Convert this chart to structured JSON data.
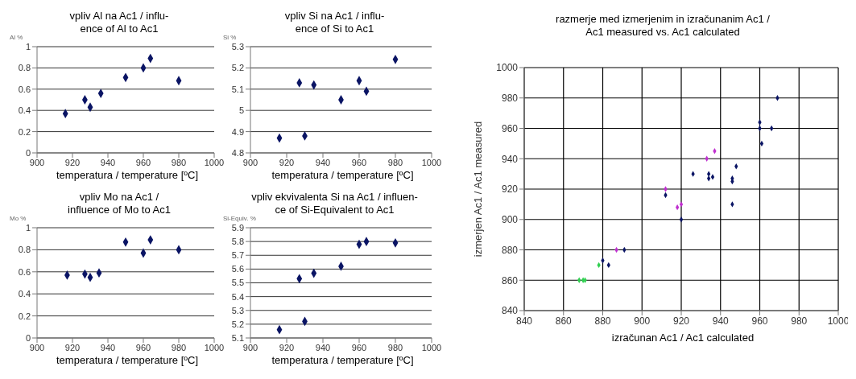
{
  "chart_data": [
    {
      "type": "scatter",
      "title": "vpliv Al na Ac1 / influ-\nence of Al to Ac1",
      "xlabel": "temperatura / temperature [ºC]",
      "ylabel": "Al %",
      "x": [
        916,
        927,
        930,
        936,
        950,
        960,
        964,
        980
      ],
      "values": [
        0.37,
        0.5,
        0.43,
        0.56,
        0.71,
        0.8,
        0.89,
        0.68
      ],
      "color": "#0a1464",
      "xlim": [
        900,
        1000
      ],
      "ylim": [
        0,
        1
      ],
      "xticks": [
        900,
        920,
        940,
        960,
        980,
        1000
      ],
      "yticks": [
        0,
        0.2,
        0.4,
        0.6,
        0.8,
        1
      ],
      "grid": "y",
      "marker": "diamond"
    },
    {
      "type": "scatter",
      "title": "vpliv Si na Ac1 / influ-\nence of Si to Ac1",
      "xlabel": "temperatura / temperature [ºC]",
      "ylabel": "Si %",
      "x": [
        916,
        927,
        930,
        935,
        950,
        960,
        964,
        980
      ],
      "values": [
        4.87,
        5.13,
        4.88,
        5.12,
        5.05,
        5.14,
        5.09,
        5.24
      ],
      "color": "#0a1464",
      "xlim": [
        900,
        1000
      ],
      "ylim": [
        4.8,
        5.3
      ],
      "xticks": [
        900,
        920,
        940,
        960,
        980,
        1000
      ],
      "yticks": [
        4.8,
        4.9,
        5,
        5.1,
        5.2,
        5.3
      ],
      "grid": "y",
      "marker": "diamond"
    },
    {
      "type": "scatter",
      "title": "vpliv Mo na Ac1 /\ninfluence of Mo to Ac1",
      "xlabel": "temperatura / temperature [ºC]",
      "ylabel": "Mo %",
      "x": [
        917,
        927,
        930,
        935,
        950,
        960,
        964,
        980
      ],
      "values": [
        0.57,
        0.58,
        0.55,
        0.59,
        0.87,
        0.77,
        0.89,
        0.8
      ],
      "color": "#0a1464",
      "xlim": [
        900,
        1000
      ],
      "ylim": [
        0,
        1
      ],
      "xticks": [
        900,
        920,
        940,
        960,
        980,
        1000
      ],
      "yticks": [
        0,
        0.2,
        0.4,
        0.6,
        0.8,
        1
      ],
      "grid": "y",
      "marker": "diamond"
    },
    {
      "type": "scatter",
      "title": "vpliv ekvivalenta Si na Ac1 / influen-\nce of Si-Equivalent to Ac1",
      "xlabel": "temperatura / temperature [ºC]",
      "ylabel": "Si-Equiv. %",
      "x": [
        916,
        927,
        930,
        935,
        950,
        960,
        964,
        980
      ],
      "values": [
        5.16,
        5.53,
        5.22,
        5.57,
        5.62,
        5.78,
        5.8,
        5.79
      ],
      "color": "#0a1464",
      "xlim": [
        900,
        1000
      ],
      "ylim": [
        5.1,
        5.9
      ],
      "xticks": [
        900,
        920,
        940,
        960,
        980,
        1000
      ],
      "yticks": [
        5.1,
        5.2,
        5.3,
        5.4,
        5.5,
        5.6,
        5.7,
        5.8,
        5.9
      ],
      "grid": "y",
      "marker": "diamond"
    },
    {
      "type": "scatter",
      "title": "razmerje med izmerjenim in izračunanim Ac1 /\nAc1 measured vs. Ac1 calculated",
      "xlabel": "izračunan Ac1 / Ac1 calculated",
      "ylabel": "izmerjen Ac1 / Ac1 measured",
      "xlim": [
        840,
        1000
      ],
      "ylim": [
        840,
        1000
      ],
      "xticks": [
        840,
        860,
        880,
        900,
        920,
        940,
        960,
        980,
        1000
      ],
      "yticks": [
        840,
        860,
        880,
        900,
        920,
        940,
        960,
        980,
        1000
      ],
      "grid": true,
      "marker": "diamond",
      "series": [
        {
          "color": "#0a1464",
          "x": [
            880,
            883,
            891,
            912,
            920,
            926,
            934,
            934,
            936,
            946,
            946,
            946,
            948,
            960,
            960,
            961,
            966,
            969
          ],
          "values": [
            873,
            870,
            880,
            916,
            900,
            930,
            930,
            927,
            928,
            927,
            925,
            910,
            935,
            964,
            960,
            950,
            960,
            980
          ]
        },
        {
          "color": "#c030d0",
          "x": [
            887,
            912,
            918,
            920,
            933,
            937
          ],
          "values": [
            880,
            920,
            908,
            910,
            940,
            945
          ]
        },
        {
          "color": "#30d050",
          "x": [
            868,
            870,
            871,
            878
          ],
          "values": [
            860,
            860,
            860,
            870
          ]
        }
      ]
    }
  ]
}
